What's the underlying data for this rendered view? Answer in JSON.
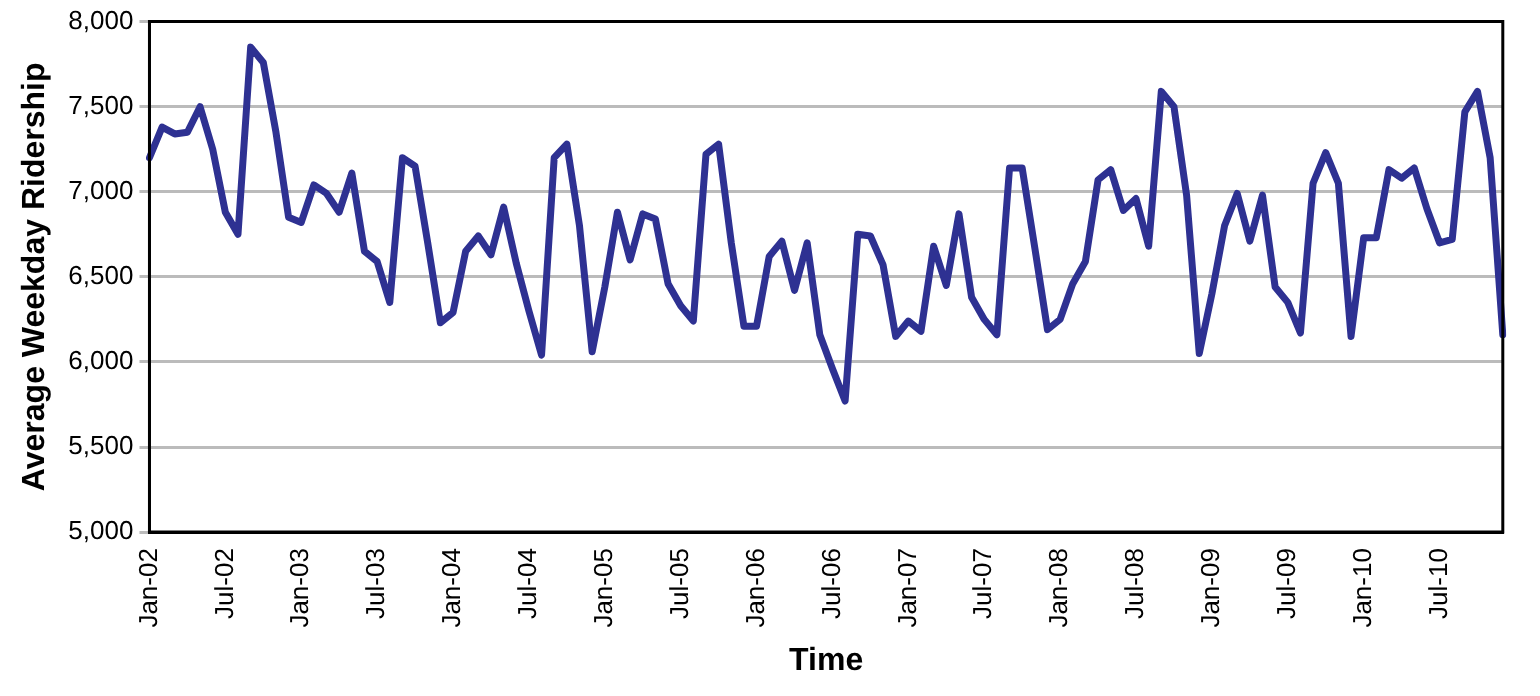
{
  "chart_data": {
    "type": "line",
    "xlabel": "Time",
    "ylabel": "Average Weekday Ridership",
    "categories": [
      "Jan-02",
      null,
      null,
      null,
      null,
      null,
      "Jul-02",
      null,
      null,
      null,
      null,
      null,
      "Jan-03",
      null,
      null,
      null,
      null,
      null,
      "Jul-03",
      null,
      null,
      null,
      null,
      null,
      "Jan-04",
      null,
      null,
      null,
      null,
      null,
      "Jul-04",
      null,
      null,
      null,
      null,
      null,
      "Jan-05",
      null,
      null,
      null,
      null,
      null,
      "Jul-05",
      null,
      null,
      null,
      null,
      null,
      "Jan-06",
      null,
      null,
      null,
      null,
      null,
      "Jul-06",
      null,
      null,
      null,
      null,
      null,
      "Jan-07",
      null,
      null,
      null,
      null,
      null,
      "Jul-07",
      null,
      null,
      null,
      null,
      null,
      "Jan-08",
      null,
      null,
      null,
      null,
      null,
      "Jul-08",
      null,
      null,
      null,
      null,
      null,
      "Jan-09",
      null,
      null,
      null,
      null,
      null,
      "Jul-09",
      null,
      null,
      null,
      null,
      null,
      "Jan-10",
      null,
      null,
      null,
      null,
      null,
      "Jul-10",
      null,
      null,
      null,
      null,
      null
    ],
    "series": [
      {
        "color": "#2e3192",
        "values": [
          7200,
          7380,
          7340,
          7350,
          7500,
          7250,
          6880,
          6750,
          7850,
          7760,
          7350,
          6850,
          6820,
          7040,
          6990,
          6880,
          7110,
          6650,
          6590,
          6350,
          7200,
          7150,
          6700,
          6230,
          6290,
          6650,
          6740,
          6630,
          6910,
          6580,
          6300,
          6040,
          7200,
          7280,
          6800,
          6060,
          6440,
          6880,
          6600,
          6870,
          6840,
          6460,
          6330,
          6240,
          7220,
          7280,
          6700,
          6210,
          6210,
          6620,
          6710,
          6420,
          6700,
          6160,
          5960,
          5770,
          6750,
          6740,
          6570,
          6150,
          6240,
          6180,
          6680,
          6450,
          6870,
          6380,
          6250,
          6160,
          7140,
          7140,
          6670,
          6190,
          6250,
          6460,
          6590,
          7070,
          7130,
          6890,
          6960,
          6680,
          7590,
          7500,
          6980,
          6050,
          6400,
          6800,
          6990,
          6710,
          6980,
          6440,
          6350,
          6170,
          7050,
          7230,
          7050,
          6150,
          6730,
          6730,
          7130,
          7080,
          7140,
          6900,
          6700,
          6720,
          7470,
          7590,
          7200,
          6160
        ]
      }
    ],
    "ylim": [
      5000,
      8000
    ],
    "yticks": [
      {
        "value": 5000,
        "label": "5,000"
      },
      {
        "value": 5500,
        "label": "5,500"
      },
      {
        "value": 6000,
        "label": "6,000"
      },
      {
        "value": 6500,
        "label": "6,500"
      },
      {
        "value": 7000,
        "label": "7,000"
      },
      {
        "value": 7500,
        "label": "7,500"
      },
      {
        "value": 8000,
        "label": "8,000"
      }
    ],
    "grid": "y",
    "legend": false,
    "marker": "none",
    "line_style": "solid"
  }
}
